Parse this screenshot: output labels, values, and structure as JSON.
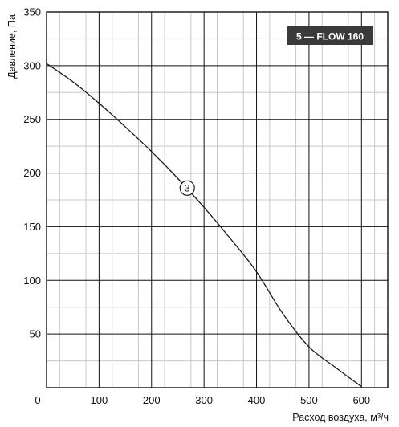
{
  "chart_data": {
    "type": "line",
    "title": "",
    "xlabel": "Расход воздуха, м³/ч",
    "ylabel": "Давление, Па",
    "xlim": [
      0,
      650
    ],
    "ylim": [
      0,
      350
    ],
    "x_ticks": [
      0,
      100,
      200,
      300,
      400,
      500,
      600
    ],
    "y_ticks": [
      50,
      100,
      150,
      200,
      250,
      300,
      350
    ],
    "grid": true,
    "legend": {
      "text": "5 — FLOW 160",
      "placement": "top-right"
    },
    "series": [
      {
        "curve_label": "3",
        "label_at": [
          268,
          186
        ],
        "x": [
          0,
          50,
          100,
          150,
          200,
          250,
          300,
          350,
          400,
          450,
          500,
          550,
          600
        ],
        "y": [
          302,
          285,
          265,
          243,
          220,
          195,
          168,
          139,
          108,
          69,
          38,
          19,
          1
        ]
      }
    ],
    "colors": {
      "line": "#1a1a1a",
      "grid": "#111111",
      "minor_grid": "#c8c8c8",
      "badge_bg": "#3a3a3a"
    }
  }
}
